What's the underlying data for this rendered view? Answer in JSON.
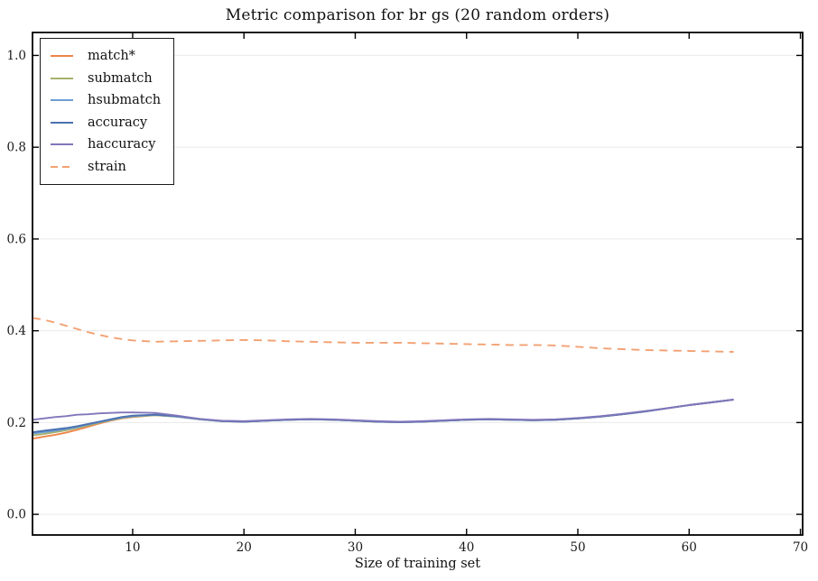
{
  "figure": {
    "title": "Metric comparison for br gs (20 random orders)",
    "xlabel": "Size of training set"
  },
  "chart_data": {
    "type": "line",
    "title": "Metric comparison for br gs (20 random orders)",
    "xlabel": "Size of training set",
    "ylabel": "",
    "xlim": [
      1,
      70.2
    ],
    "ylim": [
      -0.045,
      1.05
    ],
    "grid": "horizontal",
    "grid_color": "#eaeaea",
    "spine_color": "#000000",
    "legend_position": "upper-left",
    "xticks": {
      "values": [
        10,
        20,
        30,
        40,
        50,
        60,
        70
      ],
      "labels": [
        "10",
        "20",
        "30",
        "40",
        "50",
        "60",
        "70"
      ]
    },
    "yticks": {
      "values": [
        0.0,
        0.2,
        0.4,
        0.6,
        0.8,
        1.0
      ],
      "labels": [
        "0.0",
        "0.2",
        "0.4",
        "0.6",
        "0.8",
        "1.0"
      ]
    },
    "x": [
      1,
      2,
      3,
      4,
      5,
      6,
      7,
      8,
      9,
      10,
      12,
      14,
      16,
      18,
      20,
      22,
      24,
      26,
      28,
      30,
      32,
      34,
      36,
      38,
      40,
      42,
      44,
      46,
      48,
      50,
      52,
      54,
      56,
      58,
      60,
      62,
      64
    ],
    "series": [
      {
        "name": "match*",
        "color": "#ee8548",
        "style": "solid",
        "y": [
          0.165,
          0.169,
          0.173,
          0.178,
          0.184,
          0.191,
          0.198,
          0.204,
          0.209,
          0.212,
          0.216,
          0.213,
          0.207,
          0.203,
          0.202,
          0.204,
          0.206,
          0.207,
          0.206,
          0.204,
          0.202,
          0.201,
          0.202,
          0.204,
          0.206,
          0.207,
          0.206,
          0.205,
          0.206,
          0.209,
          0.213,
          0.218,
          0.224,
          0.231,
          0.238,
          0.244,
          0.25
        ]
      },
      {
        "name": "submatch",
        "color": "#a6b16a",
        "style": "solid",
        "y": [
          0.172,
          0.175,
          0.179,
          0.183,
          0.188,
          0.194,
          0.2,
          0.205,
          0.21,
          0.213,
          0.216,
          0.213,
          0.207,
          0.203,
          0.202,
          0.204,
          0.206,
          0.207,
          0.206,
          0.204,
          0.202,
          0.201,
          0.202,
          0.204,
          0.206,
          0.207,
          0.206,
          0.205,
          0.206,
          0.209,
          0.213,
          0.218,
          0.224,
          0.231,
          0.238,
          0.244,
          0.25
        ]
      },
      {
        "name": "hsubmatch",
        "color": "#6d9ed1",
        "style": "solid",
        "y": [
          0.176,
          0.179,
          0.182,
          0.186,
          0.19,
          0.196,
          0.201,
          0.206,
          0.211,
          0.214,
          0.217,
          0.213,
          0.207,
          0.203,
          0.202,
          0.204,
          0.206,
          0.207,
          0.206,
          0.204,
          0.202,
          0.201,
          0.202,
          0.204,
          0.206,
          0.207,
          0.206,
          0.205,
          0.206,
          0.209,
          0.213,
          0.218,
          0.224,
          0.231,
          0.238,
          0.244,
          0.25
        ]
      },
      {
        "name": "accuracy",
        "color": "#4c72b0",
        "style": "solid",
        "y": [
          0.179,
          0.182,
          0.185,
          0.188,
          0.192,
          0.197,
          0.202,
          0.207,
          0.212,
          0.215,
          0.217,
          0.214,
          0.208,
          0.203,
          0.202,
          0.204,
          0.206,
          0.207,
          0.206,
          0.204,
          0.202,
          0.201,
          0.202,
          0.204,
          0.206,
          0.207,
          0.206,
          0.205,
          0.206,
          0.209,
          0.213,
          0.218,
          0.224,
          0.231,
          0.238,
          0.244,
          0.25
        ]
      },
      {
        "name": "haccuracy",
        "color": "#8176bb",
        "style": "solid",
        "y": [
          0.206,
          0.209,
          0.212,
          0.214,
          0.217,
          0.218,
          0.22,
          0.221,
          0.222,
          0.222,
          0.221,
          0.215,
          0.208,
          0.204,
          0.203,
          0.205,
          0.207,
          0.208,
          0.207,
          0.205,
          0.203,
          0.202,
          0.203,
          0.205,
          0.207,
          0.208,
          0.207,
          0.206,
          0.207,
          0.21,
          0.214,
          0.219,
          0.225,
          0.231,
          0.238,
          0.244,
          0.25
        ]
      },
      {
        "name": "strain",
        "color": "#f2a172",
        "style": "dashed",
        "y": [
          0.428,
          0.424,
          0.418,
          0.411,
          0.404,
          0.397,
          0.391,
          0.386,
          0.382,
          0.379,
          0.376,
          0.377,
          0.378,
          0.379,
          0.38,
          0.379,
          0.377,
          0.376,
          0.375,
          0.374,
          0.374,
          0.374,
          0.373,
          0.372,
          0.371,
          0.37,
          0.369,
          0.369,
          0.368,
          0.365,
          0.362,
          0.36,
          0.358,
          0.357,
          0.356,
          0.355,
          0.354
        ]
      }
    ],
    "legend_entries": [
      {
        "label": "match*",
        "color": "#ee8548",
        "style": "solid"
      },
      {
        "label": "submatch",
        "color": "#a6b16a",
        "style": "solid"
      },
      {
        "label": "hsubmatch",
        "color": "#6d9ed1",
        "style": "solid"
      },
      {
        "label": "accuracy",
        "color": "#4c72b0",
        "style": "solid"
      },
      {
        "label": "haccuracy",
        "color": "#8176bb",
        "style": "solid"
      },
      {
        "label": "strain",
        "color": "#f2a172",
        "style": "dashed"
      }
    ]
  }
}
